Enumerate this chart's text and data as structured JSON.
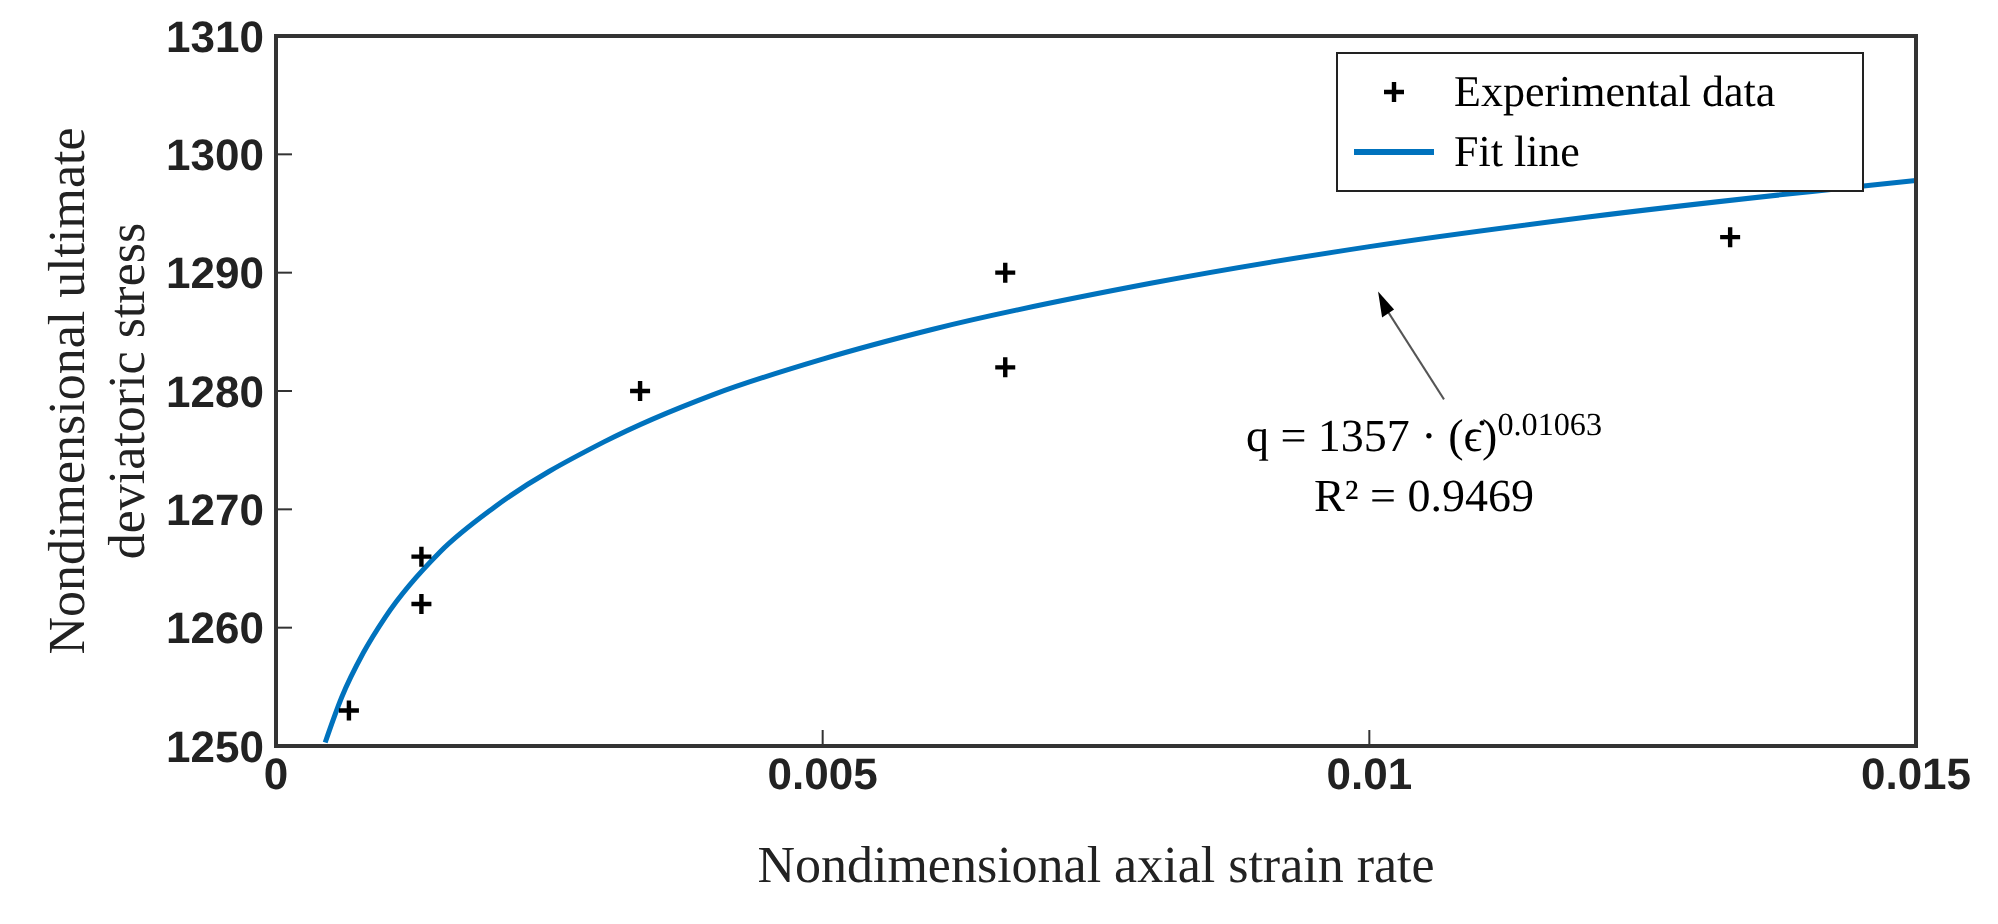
{
  "chart_data": {
    "type": "scatter",
    "xlabel": "Nondimensional axial strain rate",
    "ylabel": "Nondimensional ultimate deviatoric stress",
    "xlim": [
      0,
      0.015
    ],
    "xticks": [
      0,
      0.005,
      0.01,
      0.015
    ],
    "ylim": [
      1250,
      1310
    ],
    "yticks": [
      1250,
      1260,
      1270,
      1280,
      1290,
      1300,
      1310
    ],
    "legend": "top right",
    "series": [
      {
        "name": "Experimental data",
        "color": "#000000",
        "marker": "cross",
        "x": [
          0.000667,
          0.00133,
          0.00133,
          0.00333,
          0.00667,
          0.00667,
          0.0133
        ],
        "values": [
          1253,
          1266,
          1262,
          1280,
          1290,
          1282,
          1293
        ]
      },
      {
        "name": "Fit line",
        "type": "line",
        "color": "#0072bd",
        "marker": "none",
        "line_style": "solid",
        "x": [
          0.00045,
          0.0006,
          0.0008,
          0.001,
          0.0015,
          0.002,
          0.003,
          0.004,
          0.005,
          0.006,
          0.008,
          0.01,
          0.012,
          0.015
        ],
        "values": [
          1250.3,
          1254.1,
          1257.9,
          1260.9,
          1266.4,
          1270.2,
          1275.7,
          1279.7,
          1282.7,
          1285.2,
          1289.1,
          1292.2,
          1294.7,
          1297.8
        ]
      }
    ],
    "annotations": [
      "q = 1357 · (ϵ̇)$^{0.01063}$",
      "R² = 0.9469"
    ]
  }
}
